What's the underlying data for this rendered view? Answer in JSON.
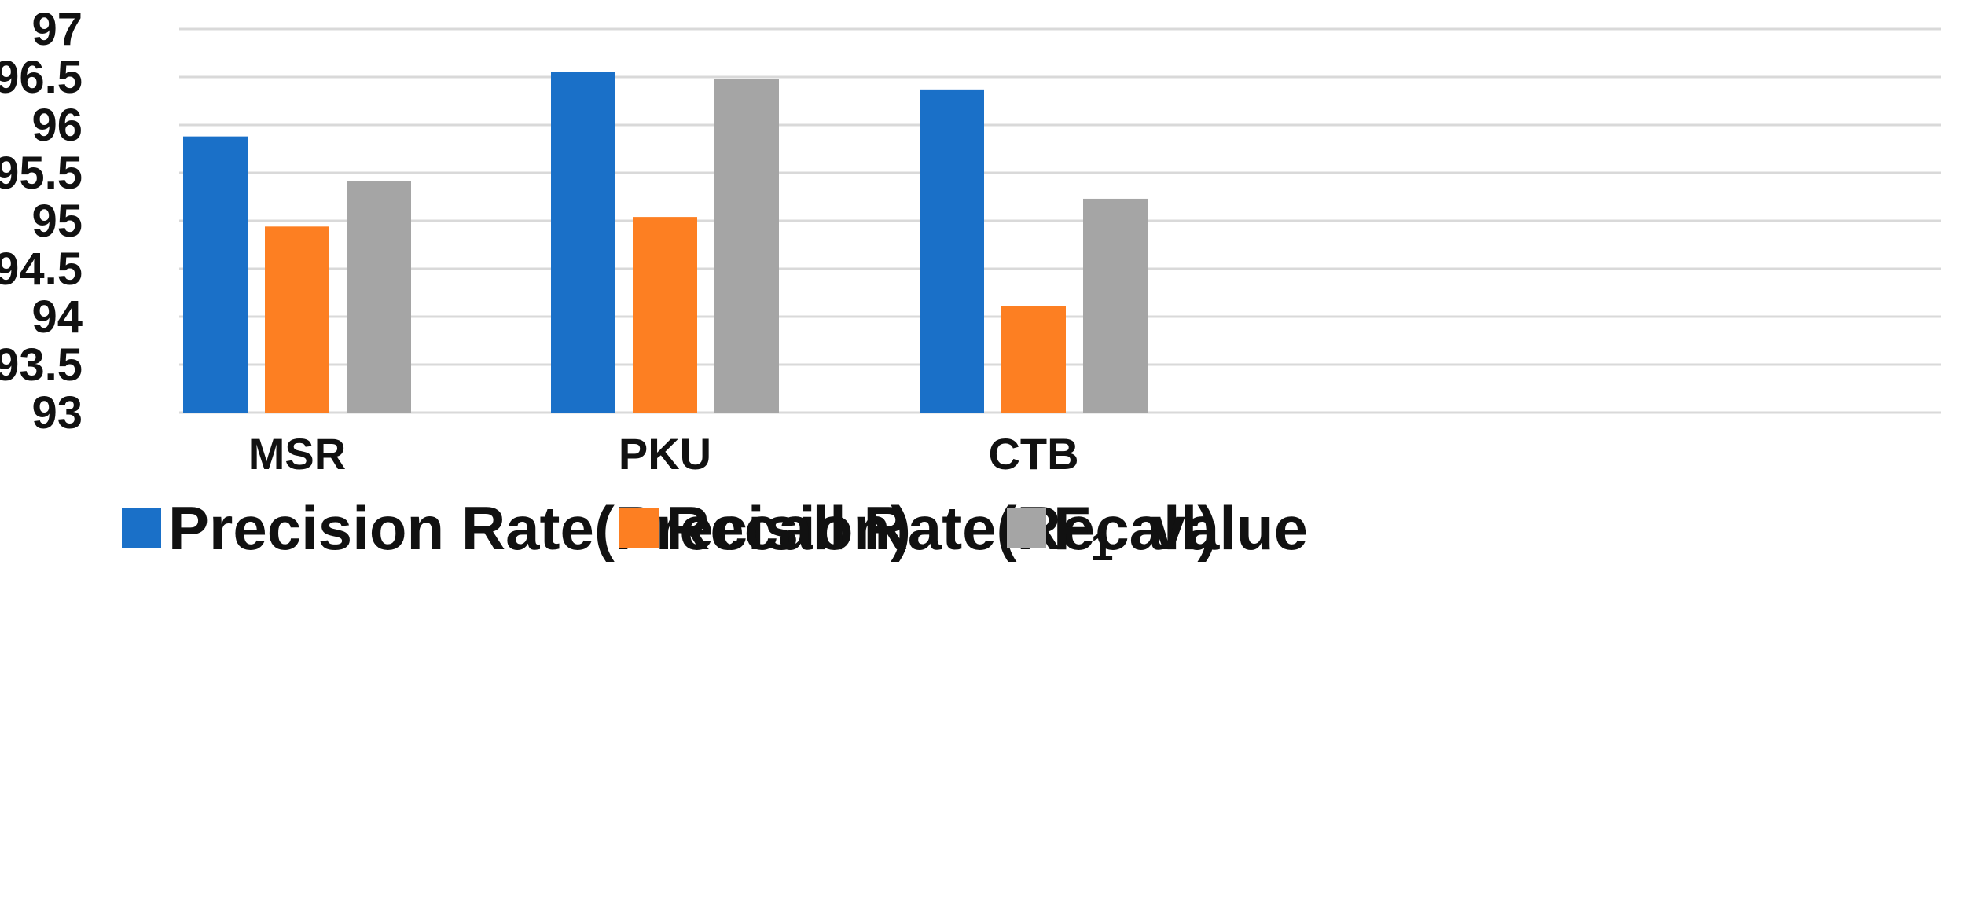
{
  "chart_data": {
    "type": "bar",
    "categories": [
      "MSR",
      "PKU",
      "CTB"
    ],
    "series": [
      {
        "name": "Precision Rate(Precision)",
        "values": [
          95.88,
          96.55,
          96.37
        ],
        "color": "#1a70c8"
      },
      {
        "name": "Recall Rate(Recall)",
        "values": [
          94.94,
          95.04,
          94.11
        ],
        "color": "#fd7f22"
      },
      {
        "name": "F1 value",
        "values": [
          95.41,
          96.48,
          95.23
        ],
        "color": "#a5a5a5",
        "label_main": "F",
        "label_sub": "1",
        "label_rest": "value"
      }
    ],
    "ylim": [
      93,
      97
    ],
    "yticks": [
      "93",
      "93.5",
      "94",
      "94.5",
      "95",
      "95.5",
      "96",
      "96.5",
      "97"
    ],
    "grid": true,
    "gridline_color": "#d9d9d9",
    "legend_position": "bottom",
    "title": "",
    "xlabel": "",
    "ylabel": ""
  }
}
